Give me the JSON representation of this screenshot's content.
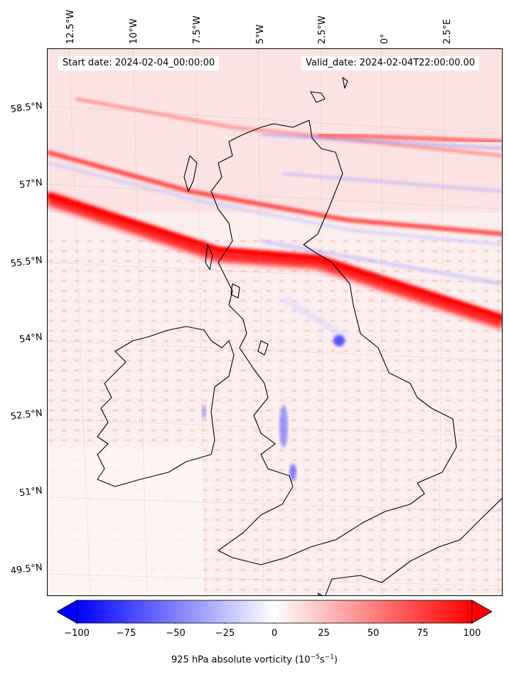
{
  "header": {
    "start_date": "Start date: 2024-02-04_00:00:00",
    "valid_date": "Valid_date: 2024-02-04T22:00:00.00"
  },
  "longitude_labels": [
    "12.5°W",
    "10°W",
    "7.5°W",
    "5°W",
    "2.5°W",
    "0°",
    "2.5°E"
  ],
  "latitude_labels": [
    "58.5°N",
    "57°N",
    "55.5°N",
    "54°N",
    "52.5°N",
    "51°N",
    "49.5°N"
  ],
  "colorbar": {
    "ticks": [
      "−100",
      "−75",
      "−50",
      "−25",
      "0",
      "25",
      "50",
      "75",
      "100"
    ],
    "title_prefix": "925 hPa absolute vorticity (10",
    "title_exp1": "−5",
    "title_mid": "s",
    "title_exp2": "−1",
    "title_suffix": ")",
    "range": [
      -100,
      100
    ],
    "colormap": "bwr",
    "extend": "both"
  },
  "colors": {
    "positive": "#ff0000",
    "negative": "#0000ff",
    "zero": "#ffffff",
    "coastline": "#000000"
  }
}
